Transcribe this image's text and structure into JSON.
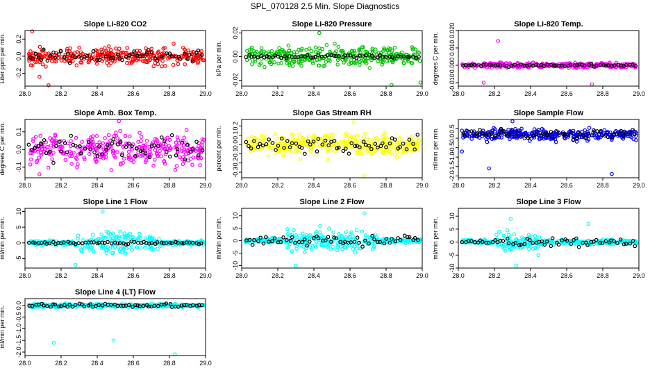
{
  "figure": {
    "title": "SPL_070128  2.5 Min. Slope Diagnostics"
  },
  "chart_data": [
    {
      "type": "scatter",
      "title": "Slope Li-820 CO2",
      "ylabel": "Liter ppm per min.",
      "color": "#ff0000",
      "xlim": [
        28.0,
        29.0
      ],
      "ylim": [
        -0.35,
        0.3
      ],
      "xticks": [
        "28.0",
        "28.2",
        "28.4",
        "28.6",
        "28.8",
        "29.0"
      ],
      "yticks": [
        {
          "value": -0.2,
          "label": "-0.2"
        },
        {
          "value": 0.0,
          "label": "0.0"
        },
        {
          "value": 0.2,
          "label": "0.2"
        }
      ],
      "spread": 0.07,
      "outliers": [
        [
          28.04,
          0.29
        ],
        [
          28.13,
          -0.34
        ],
        [
          28.08,
          -0.24
        ]
      ],
      "black_spread": 0.05
    },
    {
      "type": "scatter",
      "title": "Slope Li-820 Pressure",
      "ylabel": "kPa per min.",
      "color": "#00c000",
      "xlim": [
        28.0,
        29.0
      ],
      "ylim": [
        -0.025,
        0.022
      ],
      "xticks": [
        "28.0",
        "28.2",
        "28.4",
        "28.6",
        "28.8",
        "29.0"
      ],
      "yticks": [
        {
          "value": -0.02,
          "label": "-0.02"
        },
        {
          "value": 0.0,
          "label": "0.00"
        },
        {
          "value": 0.02,
          "label": "0.02"
        }
      ],
      "spread": 0.006,
      "outliers": [
        [
          28.43,
          0.02
        ],
        [
          28.83,
          -0.024
        ],
        [
          28.99,
          -0.022
        ]
      ],
      "black_spread": 0.001
    },
    {
      "type": "scatter",
      "title": "Slope Li-820 Temp.",
      "ylabel": "degrees C per min.",
      "color": "#ff00ff",
      "xlim": [
        28.0,
        29.0
      ],
      "ylim": [
        -0.012,
        0.02
      ],
      "xticks": [
        "28.0",
        "28.2",
        "28.4",
        "28.6",
        "28.8",
        "29.0"
      ],
      "yticks": [
        {
          "value": -0.01,
          "label": "-0.010"
        },
        {
          "value": 0.0,
          "label": "0.000"
        },
        {
          "value": 0.01,
          "label": "0.010"
        },
        {
          "value": 0.02,
          "label": "0.020"
        }
      ],
      "spread": 0.001,
      "outliers": [
        [
          28.22,
          0.014
        ],
        [
          28.74,
          -0.011
        ],
        [
          28.14,
          -0.01
        ]
      ],
      "black_spread": 0.0005
    },
    {
      "type": "scatter",
      "title": "Slope Amb. Box Temp.",
      "ylabel": "degrees C per min.",
      "color": "#ff00ff",
      "xlim": [
        28.0,
        29.0
      ],
      "ylim": [
        -0.16,
        0.17
      ],
      "xticks": [
        "28.0",
        "28.2",
        "28.4",
        "28.6",
        "28.8",
        "29.0"
      ],
      "yticks": [
        {
          "value": -0.1,
          "label": "-0.1"
        },
        {
          "value": 0.0,
          "label": "0.0"
        },
        {
          "value": 0.1,
          "label": "0.1"
        }
      ],
      "spread": 0.06,
      "outliers": [
        [
          28.52,
          0.16
        ],
        [
          28.08,
          -0.14
        ]
      ],
      "black_spread": 0.05
    },
    {
      "type": "scatter",
      "title": "Slope Gas Stream RH",
      "ylabel": "percent per min.",
      "color": "#ffff00",
      "xlim": [
        28.0,
        29.0
      ],
      "ylim": [
        -0.36,
        0.27
      ],
      "xticks": [
        "28.0",
        "28.2",
        "28.4",
        "28.6",
        "28.8",
        "29.0"
      ],
      "yticks": [
        {
          "value": -0.3,
          "label": "-0.3"
        },
        {
          "value": -0.2,
          "label": "-0.2"
        },
        {
          "value": -0.1,
          "label": "-0.1"
        },
        {
          "value": 0.0,
          "label": "0.0"
        },
        {
          "value": 0.1,
          "label": "0.1"
        },
        {
          "value": 0.2,
          "label": "0.2"
        }
      ],
      "spread": 0.08,
      "outliers": [
        [
          28.68,
          -0.34
        ],
        [
          28.62,
          0.24
        ]
      ],
      "black_spread": 0.06
    },
    {
      "type": "scatter",
      "title": "Slope Sample Flow",
      "ylabel": "ml/min per min.",
      "color": "#0000ff",
      "xlim": [
        28.0,
        29.0
      ],
      "ylim": [
        -2.1,
        1.0
      ],
      "xticks": [
        "28.0",
        "28.2",
        "28.4",
        "28.6",
        "28.8",
        "29.0"
      ],
      "yticks": [
        {
          "value": -2.0,
          "label": "-2.0"
        },
        {
          "value": -1.5,
          "label": "-1.5"
        },
        {
          "value": -1.0,
          "label": "-1.0"
        },
        {
          "value": -0.5,
          "label": "-0.5"
        },
        {
          "value": 0.0,
          "label": "0.0"
        },
        {
          "value": 0.5,
          "label": "0.5"
        }
      ],
      "spread": 0.2,
      "base": 0.2,
      "outliers": [
        [
          28.17,
          -1.6
        ],
        [
          28.85,
          -1.9
        ],
        [
          28.3,
          0.9
        ],
        [
          28.02,
          -0.7
        ]
      ],
      "black_spread": 0.2
    },
    {
      "type": "scatter",
      "title": "Slope Line 1 Flow",
      "ylabel": "ml/min per min.",
      "color": "#00ffff",
      "xlim": [
        28.0,
        29.0
      ],
      "ylim": [
        -8,
        11
      ],
      "xticks": [
        "28.0",
        "28.2",
        "28.4",
        "28.6",
        "28.8",
        "29.0"
      ],
      "yticks": [
        {
          "value": -5,
          "label": "-5"
        },
        {
          "value": 0,
          "label": "0"
        },
        {
          "value": 5,
          "label": "5"
        },
        {
          "value": 10,
          "label": "10"
        }
      ],
      "spread": 0.5,
      "burst": [
        [
          28.28,
          28.75,
          5
        ]
      ],
      "outliers": [
        [
          28.43,
          10
        ],
        [
          28.28,
          -7
        ]
      ],
      "black_spread": 0.3
    },
    {
      "type": "scatter",
      "title": "Slope Line 2 Flow",
      "ylabel": "ml/min per min.",
      "color": "#00ffff",
      "xlim": [
        28.0,
        29.0
      ],
      "ylim": [
        -11,
        13
      ],
      "xticks": [
        "28.0",
        "28.2",
        "28.4",
        "28.6",
        "28.8",
        "29.0"
      ],
      "yticks": [
        {
          "value": -10,
          "label": "-10"
        },
        {
          "value": -5,
          "label": "-5"
        },
        {
          "value": 0,
          "label": "0"
        },
        {
          "value": 5,
          "label": "5"
        },
        {
          "value": 10,
          "label": "10"
        }
      ],
      "spread": 0.6,
      "burst": [
        [
          28.25,
          28.75,
          5
        ]
      ],
      "outliers": [
        [
          28.3,
          -10
        ],
        [
          28.68,
          11
        ]
      ],
      "black_spread": 1.5
    },
    {
      "type": "scatter",
      "title": "Slope Line 3 Flow",
      "ylabel": "ml/min per min.",
      "color": "#00ffff",
      "xlim": [
        28.0,
        29.0
      ],
      "ylim": [
        -10,
        13
      ],
      "xticks": [
        "28.0",
        "28.2",
        "28.4",
        "28.6",
        "28.8",
        "29.0"
      ],
      "yticks": [
        {
          "value": -10,
          "label": "-10"
        },
        {
          "value": -5,
          "label": "-5"
        },
        {
          "value": 0,
          "label": "0"
        },
        {
          "value": 5,
          "label": "5"
        },
        {
          "value": 10,
          "label": "10"
        }
      ],
      "spread": 0.6,
      "burst": [
        [
          28.2,
          28.45,
          4
        ]
      ],
      "outliers": [
        [
          28.32,
          -9
        ],
        [
          28.29,
          9
        ],
        [
          28.72,
          7
        ]
      ],
      "black_spread": 1.0
    },
    {
      "type": "scatter",
      "title": "Slope Line 4 (LT) Flow",
      "ylabel": "ml/min per min.",
      "color": "#00ffff",
      "xlim": [
        28.0,
        29.0
      ],
      "ylim": [
        -2.15,
        0.3
      ],
      "xticks": [
        "28.0",
        "28.2",
        "28.4",
        "28.6",
        "28.8",
        "29.0"
      ],
      "yticks": [
        {
          "value": -2.0,
          "label": "-2.0"
        },
        {
          "value": -1.5,
          "label": "-1.5"
        },
        {
          "value": -1.0,
          "label": "-1.0"
        },
        {
          "value": -0.5,
          "label": "-0.5"
        },
        {
          "value": 0.0,
          "label": "0.0"
        }
      ],
      "spread": 0.05,
      "outliers": [
        [
          28.16,
          -1.6
        ],
        [
          28.49,
          -1.5
        ],
        [
          28.83,
          -2.1
        ]
      ],
      "black_spread": 0.06
    }
  ]
}
